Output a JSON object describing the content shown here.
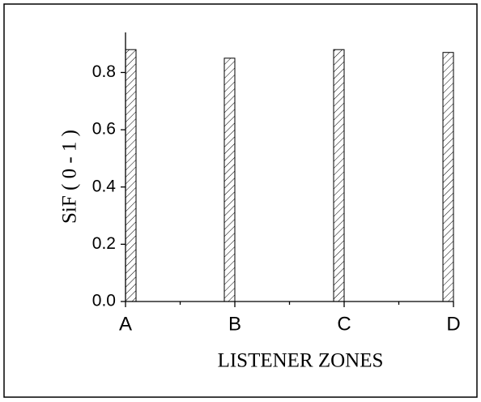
{
  "chart_data": {
    "type": "bar",
    "xlabel": "LISTENER ZONES",
    "ylabel": "SiF ( 0 - 1 )",
    "categories": [
      "A",
      "B",
      "C",
      "D"
    ],
    "values": [
      0.88,
      0.85,
      0.88,
      0.87
    ],
    "color": "#000000",
    "ylim": [
      0,
      0.94
    ],
    "yticks": [
      {
        "value": 0,
        "label": "0.0"
      },
      0.2,
      0.4,
      0.6,
      0.8
    ]
  }
}
